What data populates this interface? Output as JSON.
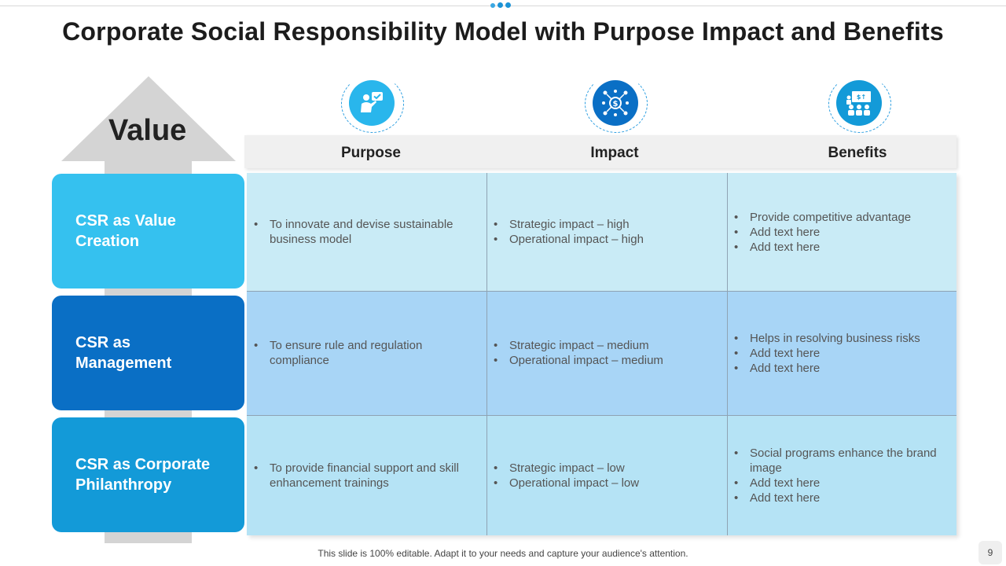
{
  "title": "Corporate Social Responsibility Model with Purpose Impact and Benefits",
  "value_label": "Value",
  "columns": [
    {
      "label": "Purpose",
      "icon": "presenter-check-icon",
      "icon_color": "#29b6ec"
    },
    {
      "label": "Impact",
      "icon": "money-network-icon",
      "icon_color": "#0a6fc5"
    },
    {
      "label": "Benefits",
      "icon": "team-growth-icon",
      "icon_color": "#139ad8"
    }
  ],
  "rows": [
    {
      "label": "CSR as Value Creation",
      "color": "#35c1ef",
      "cell_color": "#c9ebf6",
      "purpose": [
        "To innovate and devise sustainable business model"
      ],
      "impact": [
        "Strategic impact – high",
        "Operational impact – high"
      ],
      "benefits": [
        "Provide competitive advantage",
        "Add text here",
        "Add text here"
      ]
    },
    {
      "label": "CSR as Management",
      "color": "#0a6fc5",
      "cell_color": "#a8d5f6",
      "purpose": [
        "To ensure rule and regulation compliance"
      ],
      "impact": [
        "Strategic impact – medium",
        "Operational impact – medium"
      ],
      "benefits": [
        "Helps in resolving business risks",
        "Add text here",
        "Add text here"
      ]
    },
    {
      "label": "CSR as Corporate Philanthropy",
      "color": "#139ad8",
      "cell_color": "#b5e3f5",
      "purpose": [
        "To provide financial support and skill enhancement trainings"
      ],
      "impact": [
        "Strategic impact – low",
        "Operational impact – low"
      ],
      "benefits": [
        "Social programs enhance the brand image",
        "Add text here",
        "Add text here"
      ]
    }
  ],
  "footer": "This slide is 100% editable. Adapt it to your needs and capture your audience's attention.",
  "page_number": "9"
}
